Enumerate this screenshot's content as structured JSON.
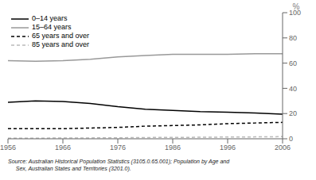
{
  "chart_data": {
    "type": "line",
    "ylabel": "%",
    "annotations": [
      "Source: Australian Historical Population Statistics (3105.0.65.001); Population by Age and",
      "     Sex, Australian States and Territories (3201.0)."
    ],
    "x": [
      1956,
      1961,
      1966,
      1971,
      1976,
      1981,
      1986,
      1991,
      1996,
      2001,
      2006
    ],
    "xlim": [
      1956,
      2006
    ],
    "xticks": [
      1956,
      1966,
      1976,
      1986,
      1996,
      2006
    ],
    "ylim": [
      0,
      100
    ],
    "yticks": [
      0,
      20,
      40,
      60,
      80,
      100
    ],
    "grid": false,
    "legend": "upper left",
    "series": [
      {
        "name": "0–14 years",
        "color": "#000000",
        "line_style": "solid",
        "values": [
          29.0,
          30.0,
          29.5,
          28.0,
          25.5,
          23.5,
          22.5,
          21.5,
          21.0,
          20.5,
          19.5
        ]
      },
      {
        "name": "15–64 years",
        "color": "#999999",
        "line_style": "solid",
        "values": [
          62.0,
          61.5,
          62.0,
          63.0,
          65.0,
          66.0,
          67.0,
          67.0,
          67.0,
          67.5,
          67.5
        ]
      },
      {
        "name": "65 years and over",
        "color": "#000000",
        "line_style": "dashed",
        "values": [
          8.0,
          8.0,
          8.0,
          8.5,
          9.0,
          10.0,
          10.5,
          11.0,
          12.0,
          12.5,
          13.0
        ]
      },
      {
        "name": "85 years and over",
        "color": "#bbbbbb",
        "line_style": "dashed",
        "values": [
          0.5,
          0.5,
          0.6,
          0.7,
          0.8,
          1.0,
          1.1,
          1.2,
          1.4,
          1.5,
          1.7
        ]
      }
    ]
  }
}
